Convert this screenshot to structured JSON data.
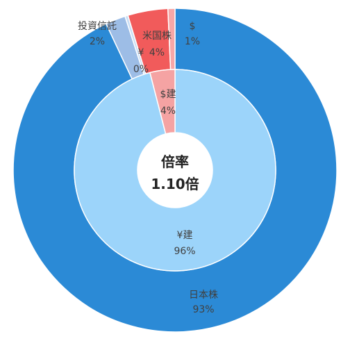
{
  "chart_data": {
    "type": "donut",
    "center": {
      "line1": "倍率",
      "line2": "1.10倍"
    },
    "outer_ring": [
      {
        "category": "日本株",
        "percent_label": "93%",
        "value": 93,
        "color": "#2B8AD6"
      },
      {
        "category": "投資信託",
        "percent_label": "2%",
        "value": 2,
        "color": "#9DBDE6"
      },
      {
        "category": "¥",
        "percent_label": "0%",
        "value": 0.3,
        "color": "#C8DEF5"
      },
      {
        "category": "米国株",
        "percent_label": "4%",
        "value": 4,
        "color": "#F15B5B"
      },
      {
        "category": "$",
        "percent_label": "1%",
        "value": 0.7,
        "color": "#F7A7A7"
      }
    ],
    "inner_ring": [
      {
        "category": "¥建",
        "percent_label": "96%",
        "value": 96,
        "color": "#9CD4FA"
      },
      {
        "category": "$建",
        "percent_label": "4%",
        "value": 4,
        "color": "#F5A3A3"
      }
    ]
  }
}
